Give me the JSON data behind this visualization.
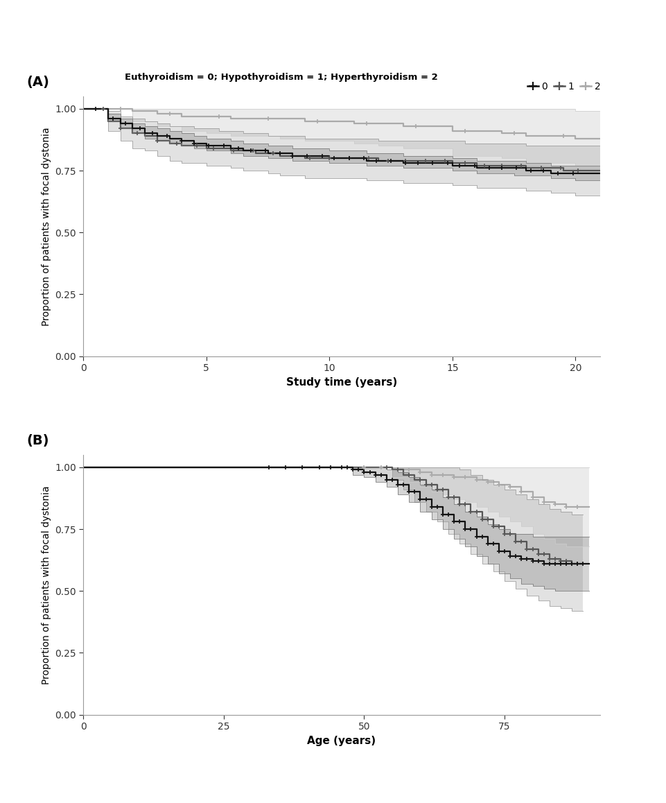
{
  "panel_A": {
    "title_label": "(A)",
    "xlabel": "Study time (years)",
    "ylabel": "Proportion of patients with focal dystonia",
    "xlim": [
      0,
      21
    ],
    "ylim": [
      0.0,
      1.05
    ],
    "yticks": [
      0.0,
      0.25,
      0.5,
      0.75,
      1.0
    ],
    "xticks": [
      0,
      5,
      10,
      15,
      20
    ],
    "group0": {
      "color": "#111111",
      "ci_color": "#777777",
      "ci_alpha": 0.3,
      "times": [
        0,
        0.3,
        1.0,
        1.5,
        2.0,
        2.5,
        3.0,
        3.5,
        4.0,
        4.5,
        5.0,
        5.5,
        6.0,
        6.5,
        7.0,
        7.5,
        8.0,
        8.5,
        9.0,
        9.5,
        10.0,
        10.5,
        11.0,
        11.5,
        12.0,
        12.5,
        13.0,
        13.5,
        14.0,
        14.5,
        15.0,
        15.5,
        16.0,
        16.5,
        17.0,
        17.5,
        18.0,
        18.5,
        19.0,
        19.5,
        20.0,
        21.0
      ],
      "surv": [
        1.0,
        1.0,
        0.96,
        0.94,
        0.92,
        0.9,
        0.89,
        0.88,
        0.87,
        0.86,
        0.85,
        0.85,
        0.84,
        0.83,
        0.83,
        0.82,
        0.82,
        0.81,
        0.81,
        0.81,
        0.8,
        0.8,
        0.8,
        0.79,
        0.79,
        0.79,
        0.78,
        0.78,
        0.78,
        0.78,
        0.77,
        0.77,
        0.76,
        0.76,
        0.76,
        0.76,
        0.75,
        0.75,
        0.74,
        0.74,
        0.74,
        0.74
      ],
      "lower": [
        1.0,
        1.0,
        0.95,
        0.92,
        0.9,
        0.88,
        0.87,
        0.86,
        0.85,
        0.84,
        0.83,
        0.83,
        0.82,
        0.81,
        0.81,
        0.8,
        0.8,
        0.79,
        0.79,
        0.79,
        0.78,
        0.78,
        0.78,
        0.77,
        0.77,
        0.77,
        0.76,
        0.76,
        0.76,
        0.76,
        0.75,
        0.75,
        0.74,
        0.74,
        0.74,
        0.73,
        0.73,
        0.73,
        0.72,
        0.72,
        0.71,
        0.67
      ],
      "upper": [
        1.0,
        1.0,
        0.98,
        0.96,
        0.94,
        0.93,
        0.92,
        0.91,
        0.9,
        0.89,
        0.88,
        0.88,
        0.87,
        0.86,
        0.86,
        0.85,
        0.85,
        0.84,
        0.84,
        0.84,
        0.83,
        0.83,
        0.83,
        0.82,
        0.82,
        0.82,
        0.81,
        0.81,
        0.81,
        0.81,
        0.8,
        0.8,
        0.79,
        0.79,
        0.79,
        0.79,
        0.78,
        0.78,
        0.77,
        0.77,
        0.77,
        0.79
      ],
      "censor_times": [
        0.5,
        1.2,
        1.7,
        2.3,
        2.8,
        3.4,
        4.0,
        4.5,
        5.1,
        5.7,
        6.3,
        6.8,
        7.4,
        8.0,
        8.5,
        9.1,
        9.7,
        10.2,
        10.8,
        11.4,
        11.9,
        12.5,
        13.1,
        13.6,
        14.2,
        14.8,
        15.3,
        15.9,
        16.5,
        17.0,
        17.6,
        18.2,
        18.7,
        19.3,
        19.9
      ]
    },
    "group1": {
      "color": "#555555",
      "ci_color": "#999999",
      "ci_alpha": 0.28,
      "times": [
        0,
        0.5,
        1.0,
        1.5,
        2.0,
        2.5,
        3.0,
        3.5,
        4.0,
        4.5,
        5.0,
        5.5,
        6.0,
        6.5,
        7.0,
        7.5,
        8.0,
        8.5,
        9.0,
        9.5,
        10.0,
        10.5,
        11.0,
        11.5,
        12.0,
        12.5,
        13.0,
        13.5,
        14.0,
        14.5,
        15.0,
        15.5,
        16.0,
        16.5,
        17.0,
        17.5,
        18.0,
        18.5,
        19.0,
        19.5,
        20.0,
        21.0
      ],
      "surv": [
        1.0,
        1.0,
        0.95,
        0.92,
        0.9,
        0.89,
        0.87,
        0.86,
        0.85,
        0.85,
        0.84,
        0.84,
        0.83,
        0.83,
        0.82,
        0.82,
        0.81,
        0.81,
        0.8,
        0.8,
        0.8,
        0.8,
        0.8,
        0.8,
        0.79,
        0.79,
        0.79,
        0.79,
        0.79,
        0.79,
        0.78,
        0.78,
        0.77,
        0.77,
        0.77,
        0.77,
        0.76,
        0.76,
        0.76,
        0.75,
        0.75,
        0.75
      ],
      "lower": [
        1.0,
        1.0,
        0.91,
        0.87,
        0.84,
        0.83,
        0.81,
        0.79,
        0.78,
        0.78,
        0.77,
        0.77,
        0.76,
        0.75,
        0.75,
        0.74,
        0.73,
        0.73,
        0.72,
        0.72,
        0.72,
        0.72,
        0.72,
        0.71,
        0.71,
        0.71,
        0.7,
        0.7,
        0.7,
        0.7,
        0.69,
        0.69,
        0.68,
        0.68,
        0.68,
        0.68,
        0.67,
        0.67,
        0.66,
        0.66,
        0.65,
        0.62
      ],
      "upper": [
        1.0,
        1.0,
        0.99,
        0.97,
        0.96,
        0.95,
        0.94,
        0.93,
        0.93,
        0.92,
        0.92,
        0.91,
        0.91,
        0.9,
        0.9,
        0.89,
        0.89,
        0.89,
        0.88,
        0.88,
        0.88,
        0.88,
        0.88,
        0.88,
        0.87,
        0.87,
        0.87,
        0.87,
        0.87,
        0.87,
        0.87,
        0.86,
        0.86,
        0.86,
        0.86,
        0.86,
        0.85,
        0.85,
        0.85,
        0.85,
        0.85,
        0.87
      ],
      "censor_times": [
        0.8,
        1.5,
        2.2,
        3.0,
        3.8,
        4.6,
        5.3,
        6.1,
        6.9,
        7.7,
        8.5,
        9.2,
        10.0,
        10.8,
        11.6,
        12.4,
        13.1,
        13.9,
        14.7,
        15.5,
        16.3,
        17.0,
        17.8,
        18.6,
        19.4,
        20.1
      ]
    },
    "group2": {
      "color": "#aaaaaa",
      "ci_color": "#cccccc",
      "ci_alpha": 0.38,
      "times": [
        0,
        1.0,
        2.0,
        3.0,
        4.0,
        5.0,
        6.0,
        7.0,
        8.0,
        9.0,
        10.0,
        11.0,
        12.0,
        13.0,
        14.0,
        15.0,
        16.0,
        17.0,
        18.0,
        19.0,
        20.0,
        21.0
      ],
      "surv": [
        1.0,
        1.0,
        0.99,
        0.98,
        0.97,
        0.97,
        0.96,
        0.96,
        0.96,
        0.95,
        0.95,
        0.94,
        0.94,
        0.93,
        0.93,
        0.91,
        0.91,
        0.9,
        0.89,
        0.89,
        0.88,
        0.88
      ],
      "lower": [
        1.0,
        1.0,
        0.95,
        0.93,
        0.91,
        0.9,
        0.89,
        0.89,
        0.88,
        0.87,
        0.87,
        0.86,
        0.85,
        0.84,
        0.84,
        0.81,
        0.81,
        0.8,
        0.78,
        0.78,
        0.77,
        0.77
      ],
      "upper": [
        1.0,
        1.0,
        1.0,
        1.0,
        1.0,
        1.0,
        1.0,
        1.0,
        1.0,
        1.0,
        1.0,
        1.0,
        1.0,
        1.0,
        1.0,
        1.0,
        1.0,
        1.0,
        1.0,
        1.0,
        0.99,
        0.99
      ],
      "censor_times": [
        1.5,
        3.5,
        5.5,
        7.5,
        9.5,
        11.5,
        13.5,
        15.5,
        17.5,
        19.5
      ]
    }
  },
  "panel_B": {
    "title_label": "(B)",
    "xlabel": "Age (years)",
    "ylabel": "Proportion of patients with focal dystonia",
    "xlim": [
      0,
      92
    ],
    "ylim": [
      0.0,
      1.05
    ],
    "yticks": [
      0.0,
      0.25,
      0.5,
      0.75,
      1.0
    ],
    "xticks": [
      0,
      25,
      50,
      75
    ],
    "group0": {
      "color": "#111111",
      "ci_color": "#777777",
      "ci_alpha": 0.3,
      "times": [
        0,
        5,
        30,
        40,
        45,
        48,
        50,
        52,
        54,
        56,
        58,
        60,
        62,
        64,
        66,
        68,
        70,
        72,
        74,
        76,
        78,
        80,
        82,
        84,
        86,
        88,
        90
      ],
      "surv": [
        1.0,
        1.0,
        1.0,
        1.0,
        1.0,
        0.99,
        0.98,
        0.97,
        0.95,
        0.93,
        0.9,
        0.87,
        0.84,
        0.81,
        0.78,
        0.75,
        0.72,
        0.69,
        0.66,
        0.64,
        0.63,
        0.62,
        0.61,
        0.61,
        0.61,
        0.61,
        0.61
      ],
      "lower": [
        1.0,
        1.0,
        1.0,
        1.0,
        1.0,
        0.97,
        0.96,
        0.94,
        0.92,
        0.89,
        0.86,
        0.82,
        0.79,
        0.75,
        0.71,
        0.68,
        0.64,
        0.61,
        0.57,
        0.55,
        0.53,
        0.52,
        0.51,
        0.5,
        0.5,
        0.5,
        0.5
      ],
      "upper": [
        1.0,
        1.0,
        1.0,
        1.0,
        1.0,
        1.0,
        1.0,
        1.0,
        0.99,
        0.98,
        0.96,
        0.93,
        0.91,
        0.88,
        0.85,
        0.82,
        0.8,
        0.77,
        0.75,
        0.73,
        0.73,
        0.72,
        0.72,
        0.72,
        0.72,
        0.72,
        0.72
      ],
      "censor_times": [
        33,
        36,
        39,
        42,
        44,
        46,
        47,
        48,
        49,
        50,
        51,
        52,
        53,
        54,
        55,
        56,
        57,
        58,
        59,
        60,
        61,
        62,
        63,
        64,
        65,
        66,
        67,
        68,
        69,
        70,
        71,
        72,
        73,
        74,
        75,
        76,
        77,
        78,
        79,
        80,
        81,
        82,
        83,
        84,
        85,
        86,
        87,
        88,
        89
      ]
    },
    "group1": {
      "color": "#555555",
      "ci_color": "#999999",
      "ci_alpha": 0.28,
      "times": [
        0,
        5,
        53,
        55,
        57,
        59,
        61,
        63,
        65,
        67,
        69,
        71,
        73,
        75,
        77,
        79,
        81,
        83,
        85,
        87,
        89
      ],
      "surv": [
        1.0,
        1.0,
        1.0,
        0.99,
        0.97,
        0.95,
        0.93,
        0.91,
        0.88,
        0.85,
        0.82,
        0.79,
        0.76,
        0.73,
        0.7,
        0.67,
        0.65,
        0.63,
        0.62,
        0.61,
        0.61
      ],
      "lower": [
        1.0,
        1.0,
        1.0,
        0.95,
        0.91,
        0.86,
        0.82,
        0.78,
        0.73,
        0.69,
        0.65,
        0.61,
        0.58,
        0.54,
        0.51,
        0.48,
        0.46,
        0.44,
        0.43,
        0.42,
        0.42
      ],
      "upper": [
        1.0,
        1.0,
        1.0,
        1.0,
        1.0,
        1.0,
        1.0,
        1.0,
        1.0,
        0.99,
        0.97,
        0.95,
        0.93,
        0.91,
        0.89,
        0.87,
        0.85,
        0.83,
        0.82,
        0.81,
        0.81
      ],
      "censor_times": [
        54,
        56,
        58,
        60,
        61,
        62,
        63,
        64,
        65,
        66,
        67,
        68,
        69,
        70,
        71,
        72,
        73,
        74,
        75,
        76,
        77,
        78,
        79,
        80,
        81,
        82,
        83,
        84,
        85,
        86,
        87,
        88
      ]
    },
    "group2": {
      "color": "#aaaaaa",
      "ci_color": "#cccccc",
      "ci_alpha": 0.38,
      "times": [
        0,
        5,
        48,
        52,
        55,
        58,
        60,
        62,
        64,
        66,
        68,
        70,
        72,
        74,
        76,
        78,
        80,
        82,
        84,
        86,
        88,
        90
      ],
      "surv": [
        1.0,
        1.0,
        1.0,
        1.0,
        0.99,
        0.99,
        0.98,
        0.97,
        0.97,
        0.96,
        0.96,
        0.95,
        0.94,
        0.93,
        0.92,
        0.9,
        0.88,
        0.86,
        0.85,
        0.84,
        0.84,
        0.84
      ],
      "lower": [
        1.0,
        1.0,
        1.0,
        1.0,
        0.96,
        0.94,
        0.92,
        0.9,
        0.89,
        0.87,
        0.86,
        0.84,
        0.82,
        0.8,
        0.78,
        0.76,
        0.73,
        0.71,
        0.69,
        0.68,
        0.68,
        0.68
      ],
      "upper": [
        1.0,
        1.0,
        1.0,
        1.0,
        1.0,
        1.0,
        1.0,
        1.0,
        1.0,
        1.0,
        1.0,
        1.0,
        1.0,
        1.0,
        1.0,
        1.0,
        1.0,
        1.0,
        1.0,
        1.0,
        1.0,
        1.0
      ],
      "censor_times": [
        50,
        53,
        56,
        58,
        60,
        62,
        64,
        66,
        68,
        70,
        72,
        74,
        76,
        78,
        80,
        82,
        84,
        86,
        88
      ]
    }
  },
  "legend_text": "Euthyroidism = 0; Hypothyroidism = 1; Hyperthyroidism = 2",
  "legend_items": [
    {
      "label": "0",
      "color": "#111111"
    },
    {
      "label": "1",
      "color": "#555555"
    },
    {
      "label": "2",
      "color": "#aaaaaa"
    }
  ],
  "background_color": "#ffffff"
}
